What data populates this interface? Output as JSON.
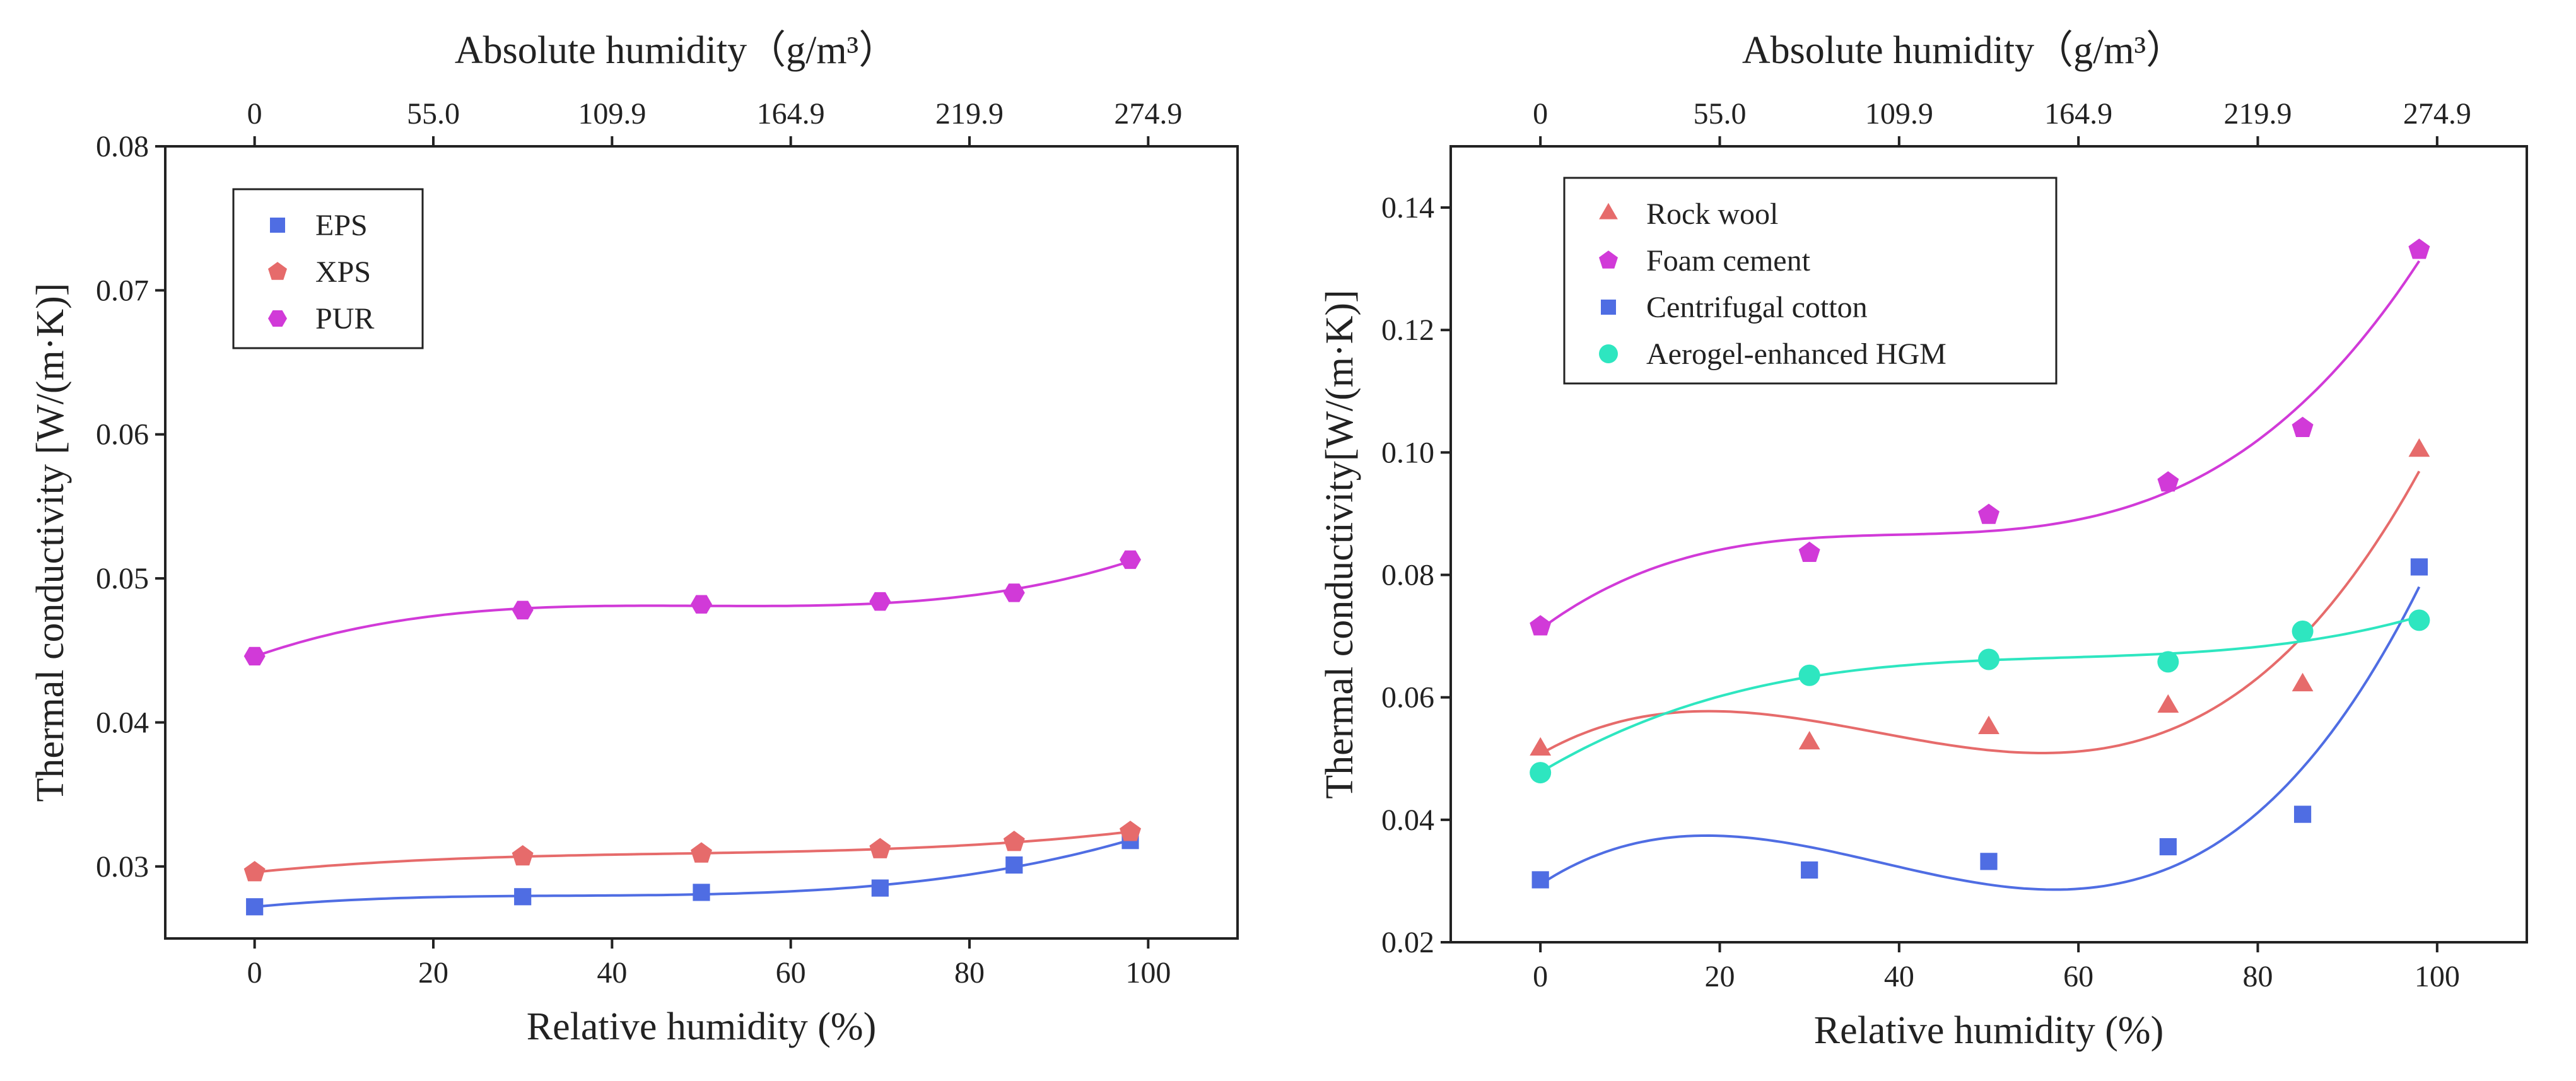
{
  "chart_data": [
    {
      "type": "scatter",
      "top_axis_title": "Absolute humidity（g/m³）",
      "top_ticks": [
        "0",
        "55.0",
        "109.9",
        "164.9",
        "219.9",
        "274.9"
      ],
      "xlabel": "Relative humidity (%)",
      "ylabel": "Thermal conductivity [W/(m·K)]",
      "xlim": [
        -10,
        110
      ],
      "ylim": [
        0.025,
        0.08
      ],
      "xticks": [
        0,
        20,
        40,
        60,
        80,
        100
      ],
      "yticks": [
        0.03,
        0.04,
        0.05,
        0.06,
        0.07,
        0.08
      ],
      "ytick_labels": [
        "0.03",
        "0.04",
        "0.05",
        "0.06",
        "0.07",
        "0.08"
      ],
      "legend_position": "top-left",
      "x": [
        0,
        30,
        50,
        70,
        85,
        98
      ],
      "series": [
        {
          "name": "EPS",
          "marker": "square",
          "color": "#4f6de3",
          "values": [
            0.0272,
            0.0279,
            0.0282,
            0.0285,
            0.0301,
            0.0318
          ]
        },
        {
          "name": "XPS",
          "marker": "pentagon",
          "color": "#e66b6b",
          "values": [
            0.0296,
            0.0307,
            0.0309,
            0.0312,
            0.0317,
            0.0324
          ]
        },
        {
          "name": "PUR",
          "marker": "hexagon",
          "color": "#d13ad8",
          "values": [
            0.0446,
            0.0478,
            0.0482,
            0.0484,
            0.049,
            0.0513
          ]
        }
      ]
    },
    {
      "type": "scatter",
      "top_axis_title": "Absolute humidity（g/m³）",
      "top_ticks": [
        "0",
        "55.0",
        "109.9",
        "164.9",
        "219.9",
        "274.9"
      ],
      "xlabel": "Relative humidity (%)",
      "ylabel": "Thermal conductivity[W/(m·K)]",
      "xlim": [
        -10,
        110
      ],
      "ylim": [
        0.02,
        0.15
      ],
      "xticks": [
        0,
        20,
        40,
        60,
        80,
        100
      ],
      "yticks": [
        0.02,
        0.04,
        0.06,
        0.08,
        0.1,
        0.12,
        0.14
      ],
      "ytick_labels": [
        "0.02",
        "0.04",
        "0.06",
        "0.08",
        "0.10",
        "0.12",
        "0.14"
      ],
      "legend_position": "top-left",
      "x": [
        0,
        30,
        50,
        70,
        85,
        98
      ],
      "series": [
        {
          "name": "Rock wool",
          "marker": "triangle",
          "color": "#e66b6b",
          "values": [
            0.0515,
            0.0525,
            0.055,
            0.0585,
            0.062,
            0.1003
          ]
        },
        {
          "name": "Foam cement",
          "marker": "pentagon",
          "color": "#d13ad8",
          "values": [
            0.0716,
            0.0836,
            0.0898,
            0.0951,
            0.104,
            0.1331
          ]
        },
        {
          "name": "Centrifugal cotton",
          "marker": "square",
          "color": "#4f6de3",
          "values": [
            0.0302,
            0.0318,
            0.0332,
            0.0356,
            0.0409,
            0.0813
          ]
        },
        {
          "name": "Aerogel-enhanced HGM",
          "marker": "circle",
          "color": "#2ee6c0",
          "values": [
            0.0477,
            0.0636,
            0.0662,
            0.0658,
            0.0708,
            0.0726
          ]
        }
      ]
    }
  ]
}
